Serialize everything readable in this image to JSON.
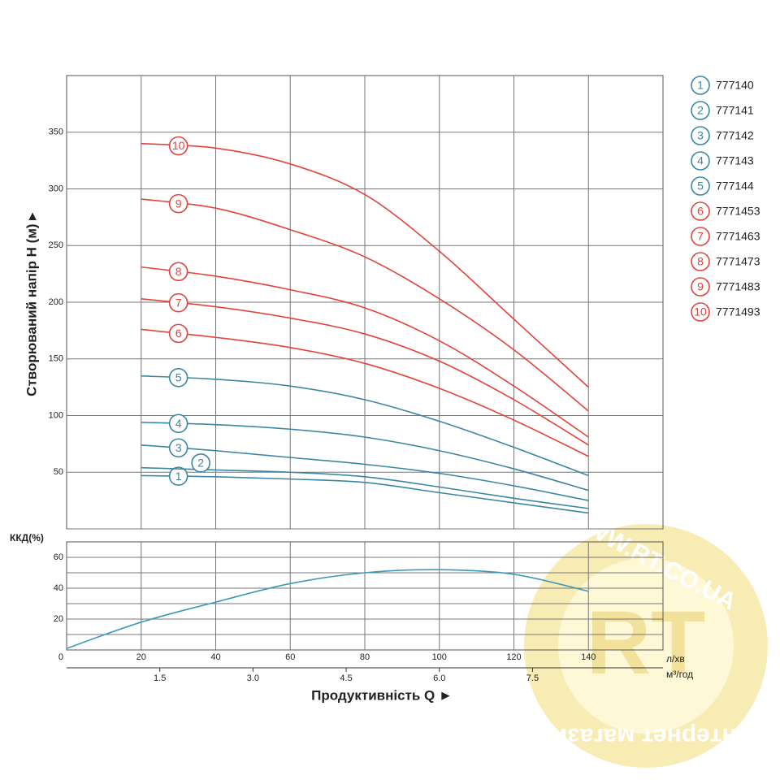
{
  "chart_data": {
    "type": "line",
    "y_label": "Створюваний напір H (м) ▸",
    "x_label": "Продуктивність  Q ►",
    "x_unit": "л/хв",
    "x2_unit": "м³/год",
    "x": [
      20,
      40,
      60,
      80,
      100,
      120,
      140
    ],
    "xlim": [
      0,
      160
    ],
    "xticks": [
      20,
      40,
      60,
      80,
      100,
      120,
      140
    ],
    "x2lim": [
      0,
      9.6
    ],
    "x2ticks": [
      1.5,
      {
        "value": 3,
        "label": "3.0"
      },
      4.5,
      {
        "value": 6,
        "label": "6.0"
      },
      7.5
    ],
    "ylim": [
      0,
      400
    ],
    "yticks": [
      0,
      50,
      100,
      150,
      200,
      250,
      300,
      350
    ],
    "grid": true,
    "series": [
      {
        "label": "1",
        "name": "777140",
        "color": "#3b87a3",
        "values": [
          47,
          46,
          44,
          41,
          32,
          23,
          14
        ]
      },
      {
        "label": "2",
        "name": "777141",
        "color": "#3b87a3",
        "values": [
          54,
          52,
          50,
          46,
          37,
          27,
          18
        ]
      },
      {
        "label": "3",
        "name": "777142",
        "color": "#3b87a3",
        "values": [
          74,
          69,
          63,
          57,
          49,
          38,
          25
        ]
      },
      {
        "label": "4",
        "name": "777143",
        "color": "#3b87a3",
        "values": [
          94,
          92,
          88,
          81,
          69,
          53,
          34
        ]
      },
      {
        "label": "5",
        "name": "777144",
        "color": "#3b87a3",
        "values": [
          135,
          132,
          126,
          114,
          95,
          72,
          47
        ]
      },
      {
        "label": "6",
        "name": "7771453",
        "color": "#e2433b",
        "values": [
          176,
          169,
          160,
          146,
          124,
          96,
          64
        ]
      },
      {
        "label": "7",
        "name": "7771463",
        "color": "#e2433b",
        "values": [
          203,
          196,
          186,
          172,
          148,
          114,
          74
        ]
      },
      {
        "label": "8",
        "name": "7771473",
        "color": "#e2433b",
        "values": [
          231,
          223,
          211,
          195,
          166,
          126,
          81
        ]
      },
      {
        "label": "9",
        "name": "7771483",
        "color": "#e2433b",
        "values": [
          291,
          283,
          264,
          240,
          203,
          158,
          104
        ]
      },
      {
        "label": "10",
        "name": "7771493",
        "color": "#e2433b",
        "values": [
          340,
          336,
          322,
          295,
          245,
          185,
          125
        ]
      }
    ],
    "efficiency": {
      "y_label": "ККД(%)",
      "x": [
        0,
        20,
        40,
        60,
        80,
        100,
        120,
        140
      ],
      "values": [
        1,
        18,
        31,
        43,
        50,
        52,
        49,
        38
      ],
      "color": "#3b9ab8",
      "ylim": [
        0,
        70
      ],
      "yticks": [
        0,
        20,
        40,
        60
      ],
      "ygrid": [
        10,
        20,
        30,
        40,
        50,
        60
      ]
    },
    "watermark": {
      "logo": "RT",
      "url": "WWW.RT.CO.UA",
      "caption": "Интернет магазин"
    }
  }
}
